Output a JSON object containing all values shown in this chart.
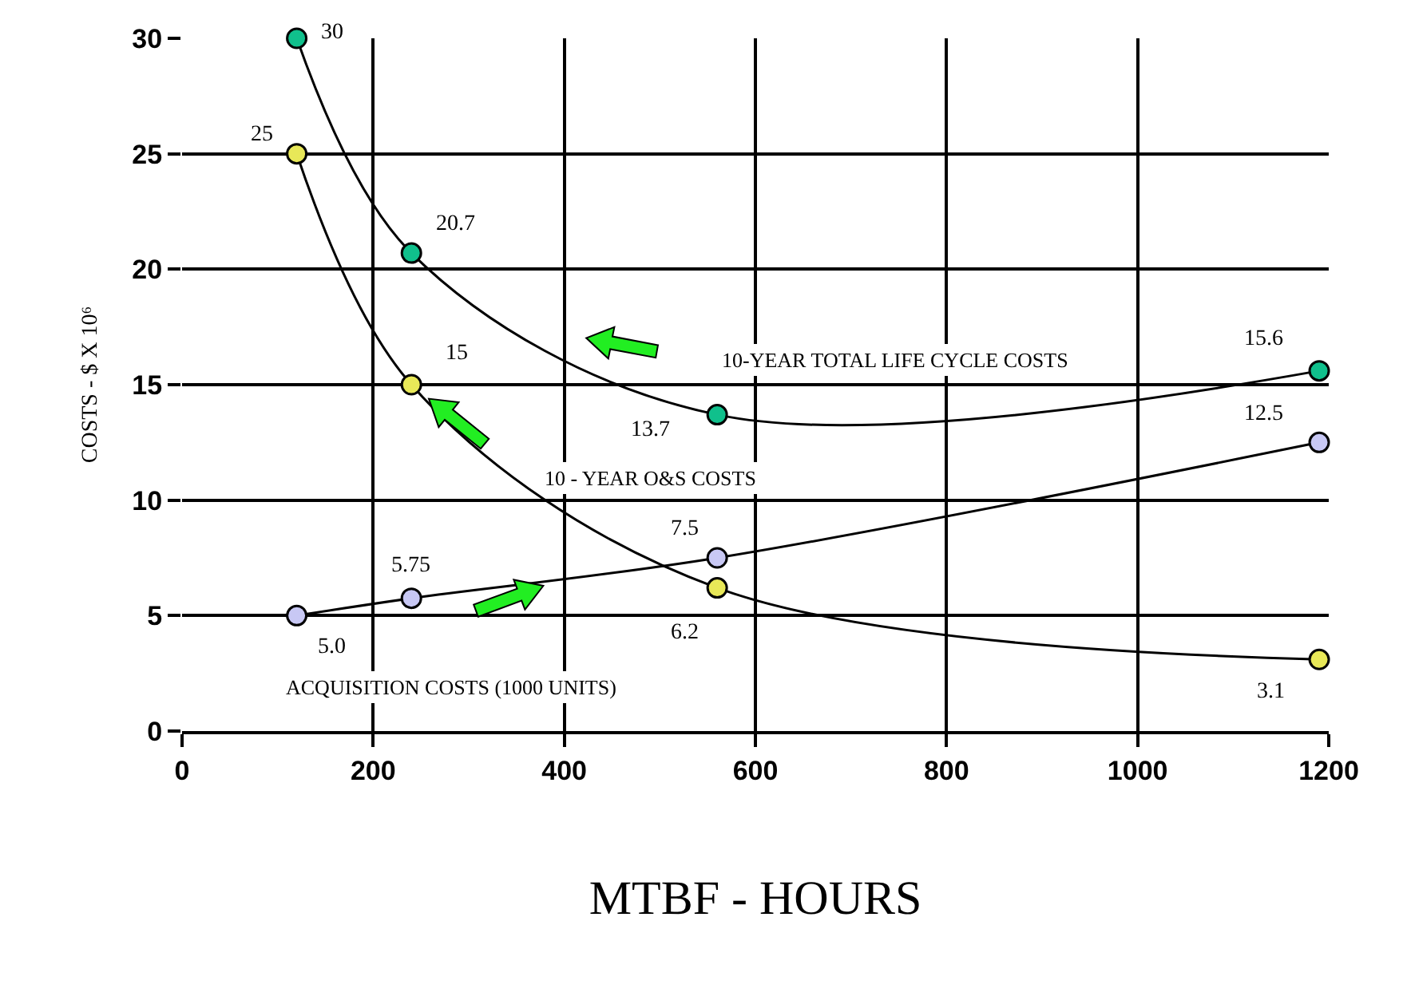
{
  "chart_data": {
    "type": "line",
    "xlabel": "MTBF - HOURS",
    "ylabel": "COSTS - $ X 10⁶",
    "x": [
      120,
      240,
      560,
      1190
    ],
    "series": [
      {
        "name": "10-YEAR TOTAL LIFE CYCLE COSTS",
        "color": "#10c08c",
        "values": [
          30,
          20.7,
          13.7,
          15.6
        ],
        "value_labels": [
          "30",
          "20.7",
          "13.7",
          "15.6"
        ]
      },
      {
        "name": "10 - YEAR O&S COSTS",
        "color": "#e8e858",
        "values": [
          25,
          15,
          6.2,
          3.1
        ],
        "value_labels": [
          "25",
          "15",
          "6.2",
          "3.1"
        ]
      },
      {
        "name": "ACQUISITION COSTS (1000 UNITS)",
        "color": "#c8c8f4",
        "values": [
          5.0,
          5.75,
          7.5,
          12.5
        ],
        "value_labels": [
          "5.0",
          "5.75",
          "7.5",
          "12.5"
        ]
      }
    ],
    "xlim": [
      0,
      1200
    ],
    "xticks": [
      0,
      200,
      400,
      600,
      800,
      1000,
      1200
    ],
    "ylim": [
      0,
      30
    ],
    "yticks": [
      0,
      5,
      10,
      15,
      20,
      25,
      30
    ],
    "grid": true,
    "legend": false,
    "marker": "circle",
    "line_style": "solid"
  }
}
